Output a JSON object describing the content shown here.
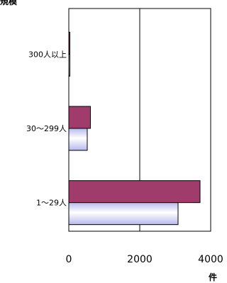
{
  "chart_data": {
    "type": "bar",
    "orientation": "horizontal",
    "ylabel": "規模",
    "xlabel": "件",
    "categories": [
      "300人以上",
      "30～299人",
      "1～29人"
    ],
    "series": [
      {
        "values": [
          5,
          610,
          3700
        ],
        "color": "#a03c6c"
      },
      {
        "values": [
          5,
          520,
          3080
        ],
        "color": "#d8d8f8"
      }
    ],
    "xlim": [
      0,
      4000
    ],
    "xticks": [
      0,
      2000,
      4000
    ],
    "tick_labels": [
      "0",
      "2000",
      "4000"
    ],
    "grid": true
  }
}
